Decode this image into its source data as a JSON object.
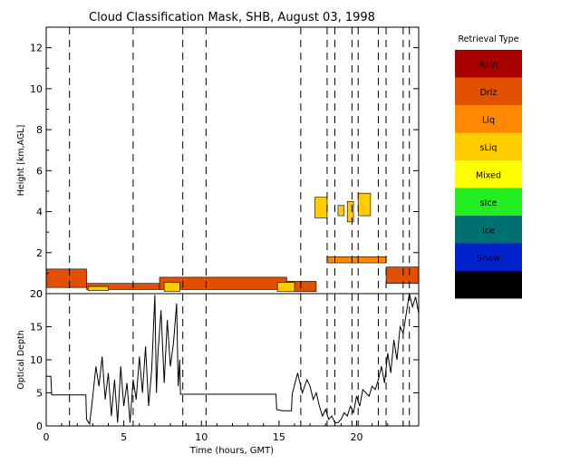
{
  "chart_data": [
    {
      "type": "heatmap",
      "title": "Cloud Classification Mask, SHB, August 03, 1998",
      "ylabel": "Height [km,AGL]",
      "xlim": [
        0,
        24
      ],
      "ylim": [
        0,
        13
      ],
      "yticks": [
        0,
        2,
        4,
        6,
        8,
        10,
        12
      ],
      "legend": {
        "title": "Retrieval Type",
        "position": "right",
        "entries": [
          {
            "label": "Rain",
            "color": "#a80000"
          },
          {
            "label": "Driz",
            "color": "#e05000"
          },
          {
            "label": "Liq",
            "color": "#ff8800"
          },
          {
            "label": "sLiq",
            "color": "#ffcc00"
          },
          {
            "label": "Mixed",
            "color": "#ffff00"
          },
          {
            "label": "sIce",
            "color": "#22ee22"
          },
          {
            "label": "Ice",
            "color": "#007070"
          },
          {
            "label": "Snow",
            "color": "#0022cc"
          },
          {
            "label": "Uncrt",
            "color": "#000000"
          }
        ]
      },
      "dashed_lines_x": [
        1.5,
        5.6,
        8.8,
        10.3,
        16.4,
        18.1,
        18.6,
        19.7,
        20.1,
        21.4,
        21.9,
        23.0,
        23.4
      ],
      "regions": [
        {
          "type": "Driz",
          "x": [
            0,
            2.6
          ],
          "y": [
            0.3,
            1.2
          ]
        },
        {
          "type": "Driz",
          "x": [
            2.6,
            7.3
          ],
          "y": [
            0.2,
            0.5
          ]
        },
        {
          "type": "Driz",
          "x": [
            7.3,
            15.5
          ],
          "y": [
            0.2,
            0.8
          ]
        },
        {
          "type": "Driz",
          "x": [
            15.5,
            17.4
          ],
          "y": [
            0.1,
            0.6
          ]
        },
        {
          "type": "Driz",
          "x": [
            21.9,
            24
          ],
          "y": [
            0.5,
            1.3
          ]
        },
        {
          "type": "sLiq",
          "x": [
            2.7,
            4.0
          ],
          "y": [
            0.15,
            0.35
          ]
        },
        {
          "type": "sLiq",
          "x": [
            7.6,
            8.6
          ],
          "y": [
            0.1,
            0.55
          ]
        },
        {
          "type": "sLiq",
          "x": [
            14.9,
            16.0
          ],
          "y": [
            0.1,
            0.55
          ]
        },
        {
          "type": "sLiq",
          "x": [
            17.3,
            18.1
          ],
          "y": [
            3.7,
            4.7
          ]
        },
        {
          "type": "sLiq",
          "x": [
            18.8,
            19.2
          ],
          "y": [
            3.8,
            4.3
          ]
        },
        {
          "type": "sLiq",
          "x": [
            19.4,
            19.8
          ],
          "y": [
            3.5,
            4.5
          ]
        },
        {
          "type": "sLiq",
          "x": [
            20.1,
            20.9
          ],
          "y": [
            3.8,
            4.9
          ]
        },
        {
          "type": "Liq",
          "x": [
            18.1,
            21.9
          ],
          "y": [
            1.5,
            1.8
          ]
        }
      ]
    },
    {
      "type": "line",
      "ylabel": "Optical Depth",
      "xlabel": "Time (hours, GMT)",
      "xlim": [
        0,
        24
      ],
      "ylim": [
        0,
        20
      ],
      "xticks": [
        0,
        5,
        10,
        15,
        20
      ],
      "yticks": [
        0,
        5,
        10,
        15,
        20
      ],
      "x": [
        0,
        0.3,
        0.35,
        0.4,
        2.55,
        2.6,
        2.8,
        3.0,
        3.2,
        3.4,
        3.6,
        3.8,
        4.0,
        4.2,
        4.4,
        4.6,
        4.8,
        5.0,
        5.2,
        5.4,
        5.6,
        5.8,
        6.0,
        6.2,
        6.4,
        6.6,
        6.8,
        7.0,
        7.1,
        7.2,
        7.4,
        7.6,
        7.8,
        8.0,
        8.2,
        8.4,
        8.5,
        8.6,
        8.65,
        14.8,
        14.85,
        15.2,
        15.8,
        15.85,
        16.2,
        16.5,
        16.8,
        17.0,
        17.2,
        17.4,
        17.6,
        17.8,
        18.0,
        18.2,
        18.4,
        18.6,
        18.8,
        19.0,
        19.2,
        19.4,
        19.6,
        19.8,
        20.0,
        20.2,
        20.4,
        20.6,
        20.8,
        21.0,
        21.2,
        21.4,
        21.6,
        21.8,
        22.0,
        22.2,
        22.4,
        22.6,
        22.8,
        23.0,
        23.2,
        23.4,
        23.6,
        23.8,
        24.0
      ],
      "y": [
        7.5,
        7.5,
        4.7,
        4.7,
        4.7,
        1.0,
        0.3,
        4.5,
        9.0,
        6.0,
        10.5,
        4.0,
        8.0,
        1.5,
        7.0,
        0.5,
        9.0,
        3.0,
        6.5,
        0.5,
        7.0,
        4.0,
        10.5,
        5.0,
        12.0,
        3.0,
        8.5,
        19.8,
        5.0,
        11.0,
        17.5,
        6.5,
        16.0,
        9.0,
        12.5,
        18.5,
        6.0,
        10.0,
        4.8,
        4.8,
        2.5,
        2.3,
        2.3,
        4.8,
        8.0,
        5.0,
        7.0,
        6.0,
        4.0,
        5.0,
        3.0,
        1.5,
        2.5,
        1.0,
        1.5,
        0.5,
        0.5,
        1.0,
        2.0,
        1.5,
        3.0,
        2.0,
        4.5,
        3.0,
        5.5,
        5.0,
        4.5,
        6.0,
        5.5,
        7.0,
        9.0,
        6.5,
        11.0,
        8.0,
        13.0,
        10.0,
        15.0,
        14.0,
        17.0,
        20.0,
        18.0,
        19.5,
        17.0
      ]
    }
  ]
}
